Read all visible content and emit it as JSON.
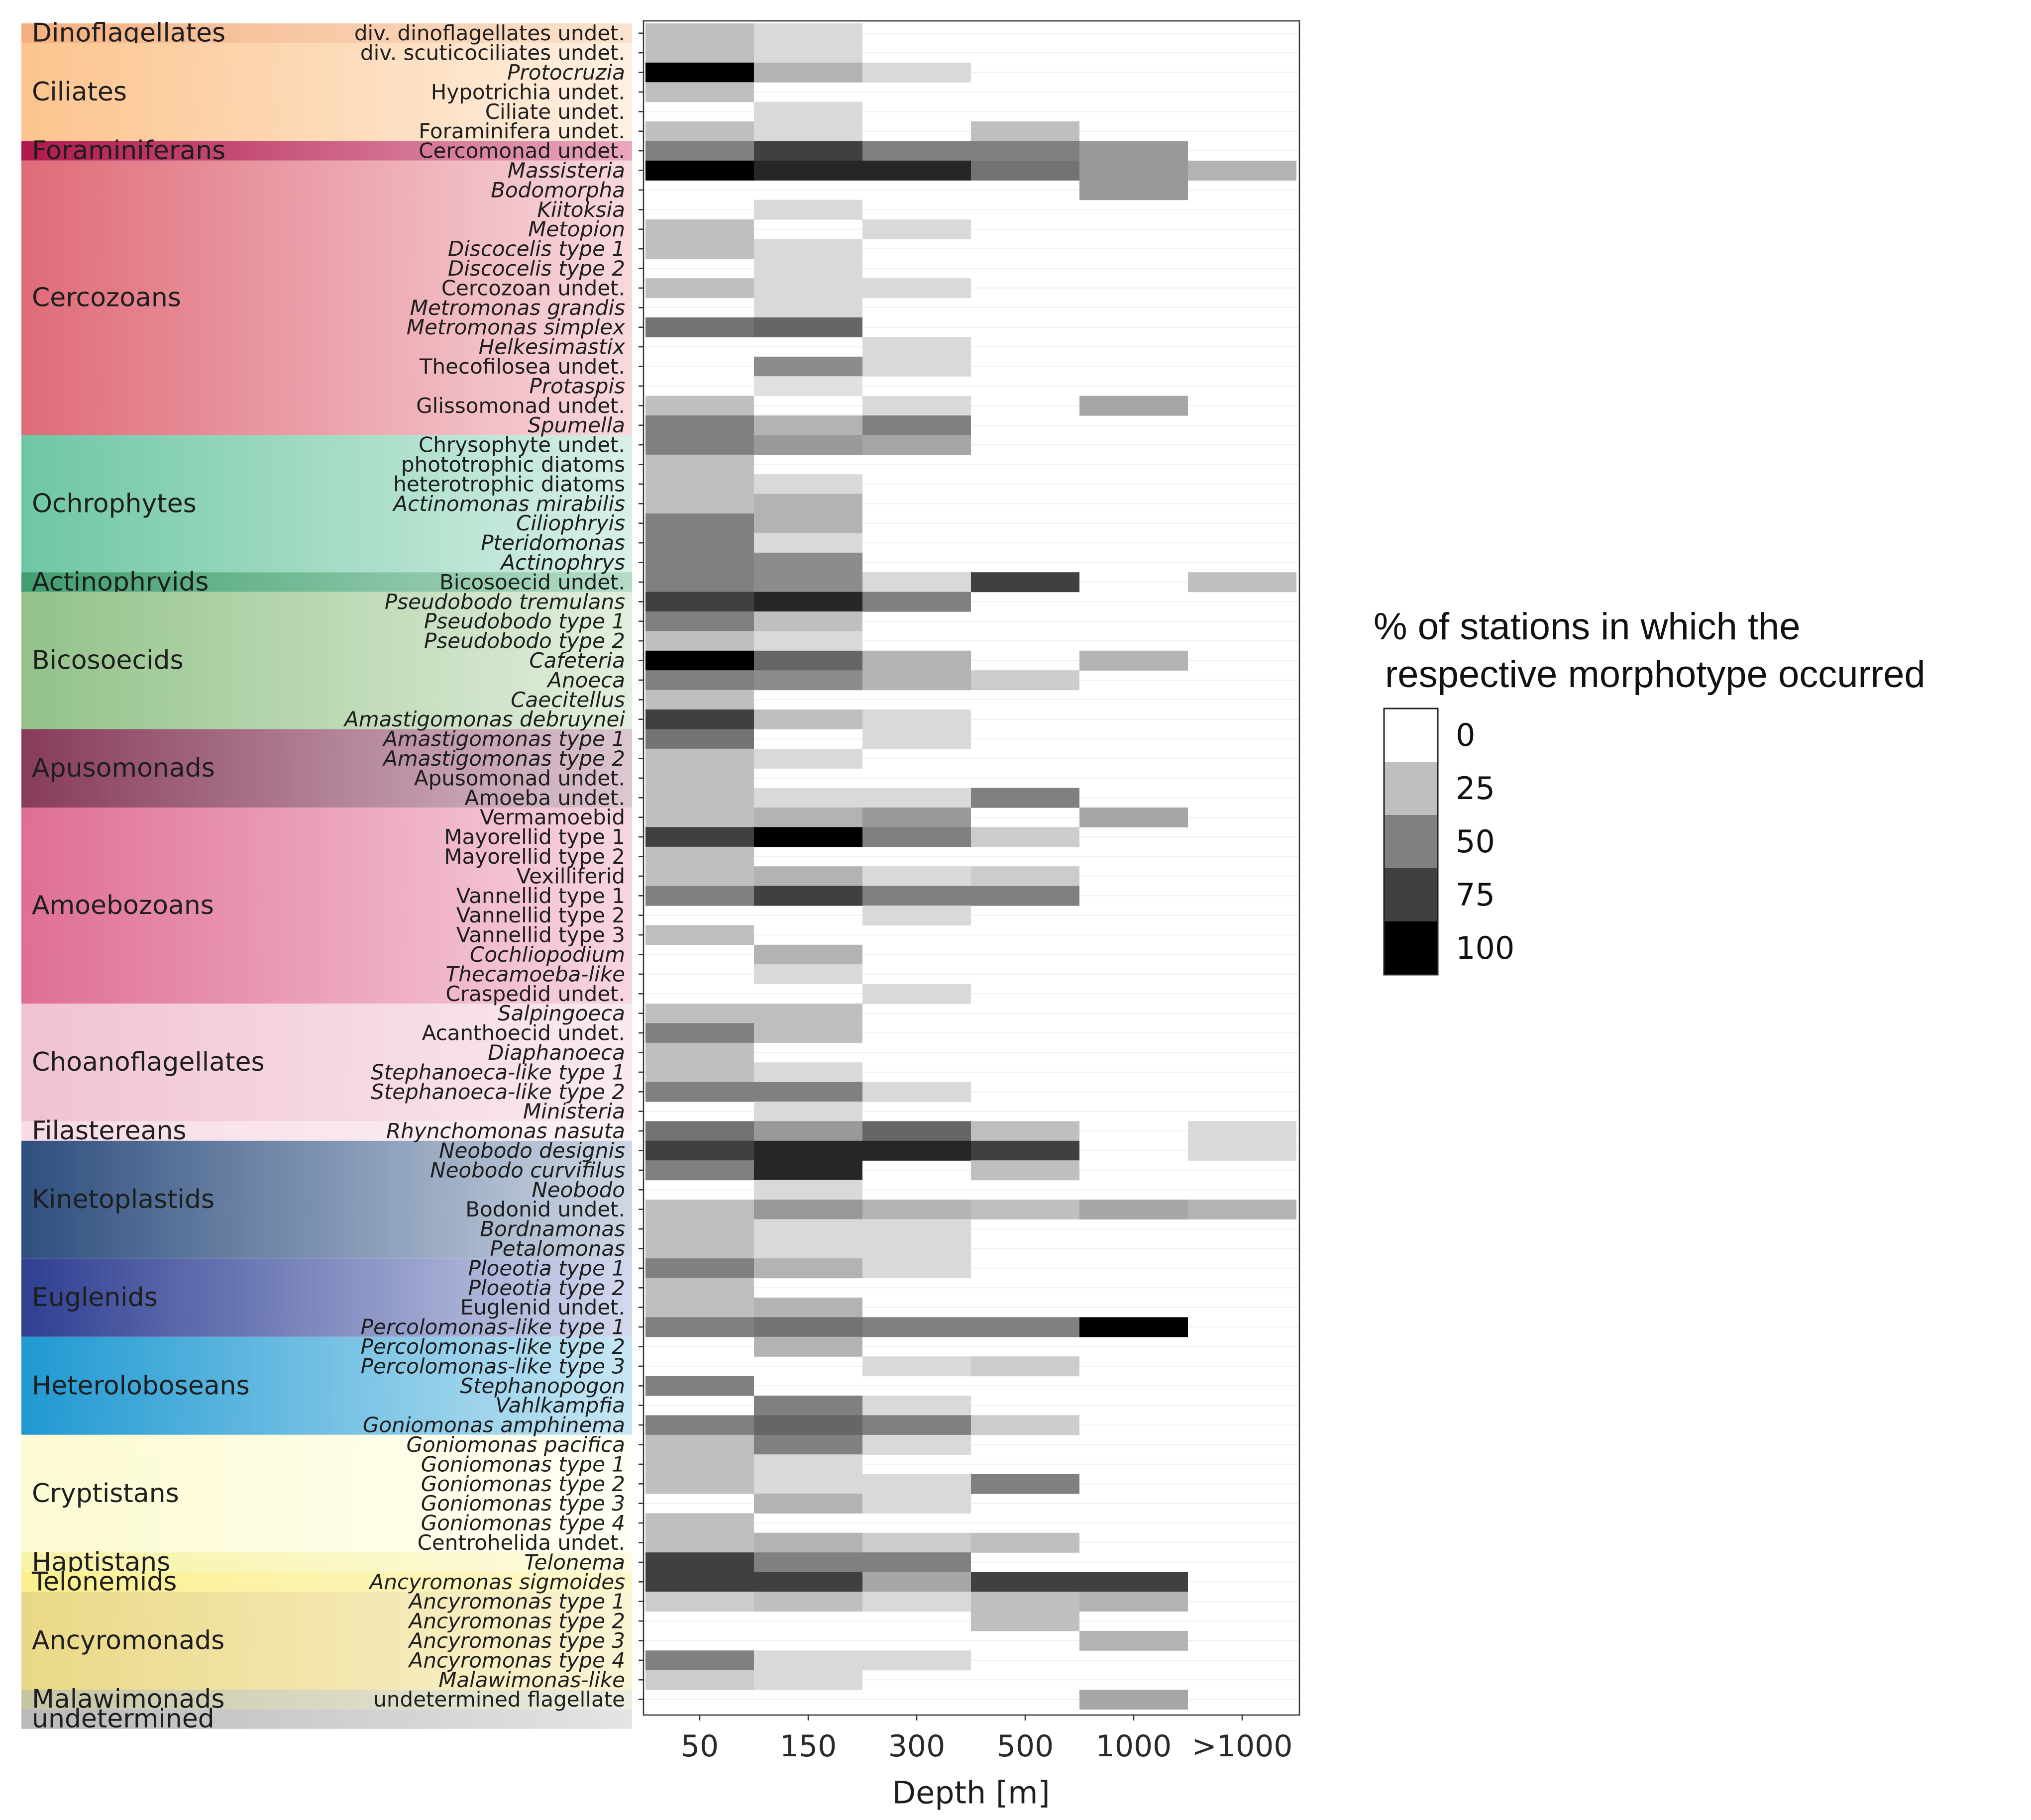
{
  "chart_data": {
    "type": "heatmap",
    "title": "",
    "xlabel": "Depth [m]",
    "ylabel": "",
    "x_categories": [
      "50",
      "150",
      "300",
      "500",
      "1000",
      ">1000"
    ],
    "legend": {
      "title_line1": "% of stations in which the",
      "title_line2": "respective morphotype occurred",
      "ticks": [
        "0",
        "25",
        "50",
        "75",
        "100"
      ],
      "scale": [
        0,
        25,
        50,
        75,
        100
      ]
    },
    "groups": [
      {
        "name": "Dinoflagellates",
        "start": 0,
        "count": 1,
        "colors": [
          "#f4b07f",
          "#fbe3cf"
        ]
      },
      {
        "name": "Ciliates",
        "start": 1,
        "count": 5,
        "colors": [
          "#fcc48e",
          "#fef0e2"
        ]
      },
      {
        "name": "Foraminiferans",
        "start": 6,
        "count": 1,
        "colors": [
          "#b0184d",
          "#e9a8bd"
        ]
      },
      {
        "name": "Cercozoans",
        "start": 7,
        "count": 14,
        "colors": [
          "#df6b78",
          "#f8d9de"
        ]
      },
      {
        "name": "Ochrophytes",
        "start": 21,
        "count": 7,
        "colors": [
          "#6ec7a4",
          "#d8f0e6"
        ]
      },
      {
        "name": "Actinophryids",
        "start": 28,
        "count": 1,
        "colors": [
          "#3f9e70",
          "#b4dcc6"
        ]
      },
      {
        "name": "Bicosoecids",
        "start": 29,
        "count": 7,
        "colors": [
          "#93c28a",
          "#e3efdd"
        ]
      },
      {
        "name": "Apusomonads",
        "start": 36,
        "count": 4,
        "colors": [
          "#873b5a",
          "#dcc7d1"
        ]
      },
      {
        "name": "Amoebozoans",
        "start": 40,
        "count": 10,
        "colors": [
          "#df6e95",
          "#f8d6e2"
        ]
      },
      {
        "name": "Choanoflagellates",
        "start": 50,
        "count": 6,
        "colors": [
          "#f0c2d3",
          "#faeaf0"
        ]
      },
      {
        "name": "Filastereans",
        "start": 56,
        "count": 1,
        "colors": [
          "#f7dbe6",
          "#fcf2f6"
        ]
      },
      {
        "name": "Kinetoplastids",
        "start": 57,
        "count": 6,
        "colors": [
          "#2f4f7f",
          "#cfd8e4"
        ]
      },
      {
        "name": "Euglenids",
        "start": 63,
        "count": 4,
        "colors": [
          "#2f3f92",
          "#d4d9ee"
        ]
      },
      {
        "name": "Heteroloboseans",
        "start": 67,
        "count": 5,
        "colors": [
          "#1f99d2",
          "#c8e7f4"
        ]
      },
      {
        "name": "Cryptistans",
        "start": 72,
        "count": 6,
        "colors": [
          "#fdfbd2",
          "#fffef4"
        ]
      },
      {
        "name": "Haptistans",
        "start": 78,
        "count": 1,
        "colors": [
          "#f7f2a5",
          "#fdfbe0"
        ]
      },
      {
        "name": "Telonemids",
        "start": 79,
        "count": 1,
        "colors": [
          "#fbf08d",
          "#fdf8cd"
        ]
      },
      {
        "name": "Ancyromonads",
        "start": 80,
        "count": 5,
        "colors": [
          "#ead886",
          "#fbf4d4"
        ]
      },
      {
        "name": "Malawimonads",
        "start": 85,
        "count": 1,
        "colors": [
          "#c6c6a4",
          "#ecece0"
        ]
      },
      {
        "name": "undetermined",
        "start": 86,
        "count": 1,
        "colors": [
          "#b9b9b9",
          "#e4e4e4"
        ]
      }
    ],
    "rows": [
      {
        "label": "div. dinoflagellates undet.",
        "italic": false,
        "values": [
          25,
          15,
          0,
          0,
          0,
          0
        ]
      },
      {
        "label": "div. scuticociliates undet.",
        "italic": false,
        "values": [
          25,
          15,
          0,
          0,
          0,
          0
        ]
      },
      {
        "label": "Protocruzia",
        "italic": true,
        "values": [
          100,
          30,
          15,
          0,
          0,
          0
        ]
      },
      {
        "label": "Hypotrichia undet.",
        "italic": false,
        "values": [
          25,
          0,
          0,
          0,
          0,
          0
        ]
      },
      {
        "label": "Ciliate undet.",
        "italic": false,
        "values": [
          0,
          15,
          0,
          0,
          0,
          0
        ]
      },
      {
        "label": "Foraminifera undet.",
        "italic": false,
        "values": [
          25,
          15,
          0,
          25,
          0,
          0
        ]
      },
      {
        "label": "Cercomonad undet.",
        "italic": false,
        "values": [
          50,
          75,
          50,
          50,
          40,
          0
        ]
      },
      {
        "label": "Massisteria",
        "italic": true,
        "values": [
          100,
          85,
          85,
          55,
          40,
          30
        ]
      },
      {
        "label": "Bodomorpha",
        "italic": true,
        "values": [
          0,
          0,
          0,
          0,
          40,
          0
        ]
      },
      {
        "label": "Kiitoksia",
        "italic": true,
        "values": [
          0,
          15,
          0,
          0,
          0,
          0
        ]
      },
      {
        "label": "Metopion",
        "italic": true,
        "values": [
          25,
          0,
          15,
          0,
          0,
          0
        ]
      },
      {
        "label": "Discocelis type 1",
        "italic": true,
        "values": [
          25,
          15,
          0,
          0,
          0,
          0
        ]
      },
      {
        "label": "Discocelis type 2",
        "italic": true,
        "values": [
          0,
          15,
          0,
          0,
          0,
          0
        ]
      },
      {
        "label": "Cercozoan undet.",
        "italic": false,
        "values": [
          25,
          15,
          15,
          0,
          0,
          0
        ]
      },
      {
        "label": "Metromonas grandis",
        "italic": true,
        "values": [
          0,
          15,
          0,
          0,
          0,
          0
        ]
      },
      {
        "label": "Metromonas simplex",
        "italic": true,
        "values": [
          55,
          60,
          0,
          0,
          0,
          0
        ]
      },
      {
        "label": "Helkesimastix",
        "italic": true,
        "values": [
          0,
          0,
          15,
          0,
          0,
          0
        ]
      },
      {
        "label": "Thecofilosea undet.",
        "italic": false,
        "values": [
          0,
          45,
          15,
          0,
          0,
          0
        ]
      },
      {
        "label": "Protaspis",
        "italic": true,
        "values": [
          0,
          12,
          0,
          0,
          0,
          0
        ]
      },
      {
        "label": "Glissomonad undet.",
        "italic": false,
        "values": [
          25,
          0,
          15,
          0,
          35,
          0
        ]
      },
      {
        "label": "Spumella",
        "italic": true,
        "values": [
          50,
          30,
          50,
          0,
          0,
          0
        ]
      },
      {
        "label": "Chrysophyte undet.",
        "italic": false,
        "values": [
          50,
          40,
          35,
          0,
          0,
          0
        ]
      },
      {
        "label": "phototrophic diatoms",
        "italic": false,
        "values": [
          25,
          0,
          0,
          0,
          0,
          0
        ]
      },
      {
        "label": "heterotrophic diatoms",
        "italic": false,
        "values": [
          25,
          15,
          0,
          0,
          0,
          0
        ]
      },
      {
        "label": "Actinomonas mirabilis",
        "italic": true,
        "values": [
          25,
          30,
          0,
          0,
          0,
          0
        ]
      },
      {
        "label": "Ciliophryis",
        "italic": true,
        "values": [
          50,
          30,
          0,
          0,
          0,
          0
        ]
      },
      {
        "label": "Pteridomonas",
        "italic": true,
        "values": [
          50,
          15,
          0,
          0,
          0,
          0
        ]
      },
      {
        "label": "Actinophrys",
        "italic": true,
        "values": [
          50,
          45,
          0,
          0,
          0,
          0
        ]
      },
      {
        "label": "Bicosoecid undet.",
        "italic": false,
        "values": [
          50,
          45,
          15,
          75,
          0,
          25
        ]
      },
      {
        "label": "Pseudobodo tremulans",
        "italic": true,
        "values": [
          75,
          85,
          50,
          0,
          0,
          0
        ]
      },
      {
        "label": "Pseudobodo type 1",
        "italic": true,
        "values": [
          50,
          25,
          0,
          0,
          0,
          0
        ]
      },
      {
        "label": "Pseudobodo type 2",
        "italic": true,
        "values": [
          25,
          15,
          0,
          0,
          0,
          0
        ]
      },
      {
        "label": "Cafeteria",
        "italic": true,
        "values": [
          100,
          60,
          30,
          0,
          30,
          0
        ]
      },
      {
        "label": "Anoeca",
        "italic": true,
        "values": [
          50,
          45,
          30,
          20,
          0,
          0
        ]
      },
      {
        "label": "Caecitellus",
        "italic": true,
        "values": [
          25,
          0,
          0,
          0,
          0,
          0
        ]
      },
      {
        "label": "Amastigomonas debruynei",
        "italic": true,
        "values": [
          75,
          25,
          15,
          0,
          0,
          0
        ]
      },
      {
        "label": "Amastigomonas type 1",
        "italic": true,
        "values": [
          55,
          0,
          15,
          0,
          0,
          0
        ]
      },
      {
        "label": "Amastigomonas type 2",
        "italic": true,
        "values": [
          25,
          15,
          0,
          0,
          0,
          0
        ]
      },
      {
        "label": "Apusomonad undet.",
        "italic": false,
        "values": [
          25,
          0,
          0,
          0,
          0,
          0
        ]
      },
      {
        "label": "Amoeba undet.",
        "italic": false,
        "values": [
          25,
          15,
          15,
          50,
          0,
          0
        ]
      },
      {
        "label": "Vermamoebid",
        "italic": false,
        "values": [
          25,
          30,
          40,
          0,
          35,
          0
        ]
      },
      {
        "label": "Mayorellid type 1",
        "italic": false,
        "values": [
          75,
          100,
          50,
          20,
          0,
          0
        ]
      },
      {
        "label": "Mayorellid type 2",
        "italic": false,
        "values": [
          25,
          0,
          0,
          0,
          0,
          0
        ]
      },
      {
        "label": "Vexilliferid",
        "italic": false,
        "values": [
          25,
          30,
          15,
          20,
          0,
          0
        ]
      },
      {
        "label": "Vannellid type 1",
        "italic": false,
        "values": [
          50,
          75,
          50,
          50,
          0,
          0
        ]
      },
      {
        "label": "Vannellid type 2",
        "italic": false,
        "values": [
          0,
          0,
          15,
          0,
          0,
          0
        ]
      },
      {
        "label": "Vannellid type 3",
        "italic": false,
        "values": [
          25,
          0,
          0,
          0,
          0,
          0
        ]
      },
      {
        "label": "Cochliopodium",
        "italic": true,
        "values": [
          0,
          30,
          0,
          0,
          0,
          0
        ]
      },
      {
        "label": "Thecamoeba-like",
        "italic": true,
        "values": [
          0,
          15,
          0,
          0,
          0,
          0
        ]
      },
      {
        "label": "Craspedid undet.",
        "italic": false,
        "values": [
          0,
          0,
          15,
          0,
          0,
          0
        ]
      },
      {
        "label": "Salpingoeca",
        "italic": true,
        "values": [
          25,
          25,
          0,
          0,
          0,
          0
        ]
      },
      {
        "label": "Acanthoecid undet.",
        "italic": false,
        "values": [
          50,
          25,
          0,
          0,
          0,
          0
        ]
      },
      {
        "label": "Diaphanoeca",
        "italic": true,
        "values": [
          25,
          0,
          0,
          0,
          0,
          0
        ]
      },
      {
        "label": "Stephanoeca-like type 1",
        "italic": true,
        "values": [
          25,
          15,
          0,
          0,
          0,
          0
        ]
      },
      {
        "label": "Stephanoeca-like type 2",
        "italic": true,
        "values": [
          50,
          50,
          15,
          0,
          0,
          0
        ]
      },
      {
        "label": "Ministeria",
        "italic": true,
        "values": [
          0,
          15,
          0,
          0,
          0,
          0
        ]
      },
      {
        "label": "Rhynchomonas nasuta",
        "italic": true,
        "values": [
          55,
          40,
          60,
          25,
          0,
          15
        ]
      },
      {
        "label": "Neobodo designis",
        "italic": true,
        "values": [
          75,
          85,
          85,
          75,
          0,
          15
        ]
      },
      {
        "label": "Neobodo curvifilus",
        "italic": true,
        "values": [
          50,
          85,
          0,
          25,
          0,
          0
        ]
      },
      {
        "label": "Neobodo",
        "italic": true,
        "values": [
          0,
          15,
          0,
          0,
          0,
          0
        ]
      },
      {
        "label": "Bodonid undet.",
        "italic": false,
        "values": [
          25,
          40,
          30,
          25,
          35,
          30
        ]
      },
      {
        "label": "Bordnamonas",
        "italic": true,
        "values": [
          25,
          15,
          15,
          0,
          0,
          0
        ]
      },
      {
        "label": "Petalomonas",
        "italic": true,
        "values": [
          25,
          15,
          15,
          0,
          0,
          0
        ]
      },
      {
        "label": "Ploeotia type 1",
        "italic": true,
        "values": [
          50,
          30,
          15,
          0,
          0,
          0
        ]
      },
      {
        "label": "Ploeotia type 2",
        "italic": true,
        "values": [
          25,
          0,
          0,
          0,
          0,
          0
        ]
      },
      {
        "label": "Euglenid undet.",
        "italic": false,
        "values": [
          25,
          30,
          0,
          0,
          0,
          0
        ]
      },
      {
        "label": "Percolomonas-like type 1",
        "italic": true,
        "values": [
          50,
          55,
          50,
          50,
          100,
          0
        ]
      },
      {
        "label": "Percolomonas-like type 2",
        "italic": true,
        "values": [
          0,
          30,
          0,
          0,
          0,
          0
        ]
      },
      {
        "label": "Percolomonas-like type 3",
        "italic": true,
        "values": [
          0,
          0,
          15,
          20,
          0,
          0
        ]
      },
      {
        "label": "Stephanopogon",
        "italic": true,
        "values": [
          50,
          0,
          0,
          0,
          0,
          0
        ]
      },
      {
        "label": "Vahlkampfia",
        "italic": true,
        "values": [
          0,
          50,
          15,
          0,
          0,
          0
        ]
      },
      {
        "label": "Goniomonas amphinema",
        "italic": true,
        "values": [
          50,
          60,
          50,
          20,
          0,
          0
        ]
      },
      {
        "label": "Goniomonas pacifica",
        "italic": true,
        "values": [
          25,
          50,
          15,
          0,
          0,
          0
        ]
      },
      {
        "label": "Goniomonas type 1",
        "italic": true,
        "values": [
          25,
          15,
          0,
          0,
          0,
          0
        ]
      },
      {
        "label": "Goniomonas type 2",
        "italic": true,
        "values": [
          25,
          15,
          15,
          50,
          0,
          0
        ]
      },
      {
        "label": "Goniomonas type 3",
        "italic": true,
        "values": [
          0,
          30,
          15,
          0,
          0,
          0
        ]
      },
      {
        "label": "Goniomonas type 4",
        "italic": true,
        "values": [
          25,
          0,
          0,
          0,
          0,
          0
        ]
      },
      {
        "label": "Centrohelida undet.",
        "italic": false,
        "values": [
          25,
          30,
          20,
          25,
          0,
          0
        ]
      },
      {
        "label": "Telonema",
        "italic": true,
        "values": [
          75,
          50,
          50,
          0,
          0,
          0
        ]
      },
      {
        "label": "Ancyromonas sigmoides",
        "italic": true,
        "values": [
          75,
          75,
          35,
          75,
          75,
          0
        ]
      },
      {
        "label": "Ancyromonas type 1",
        "italic": true,
        "values": [
          20,
          25,
          15,
          25,
          30,
          0
        ]
      },
      {
        "label": "Ancyromonas type 2",
        "italic": true,
        "values": [
          0,
          0,
          0,
          25,
          0,
          0
        ]
      },
      {
        "label": "Ancyromonas type 3",
        "italic": true,
        "values": [
          0,
          0,
          0,
          0,
          30,
          0
        ]
      },
      {
        "label": "Ancyromonas type 4",
        "italic": true,
        "values": [
          50,
          15,
          15,
          0,
          0,
          0
        ]
      },
      {
        "label": "Malawimonas-like",
        "italic": true,
        "values": [
          20,
          15,
          0,
          0,
          0,
          0
        ]
      },
      {
        "label": "undetermined flagellate",
        "italic": false,
        "values": [
          0,
          0,
          0,
          0,
          35,
          0
        ]
      }
    ]
  }
}
